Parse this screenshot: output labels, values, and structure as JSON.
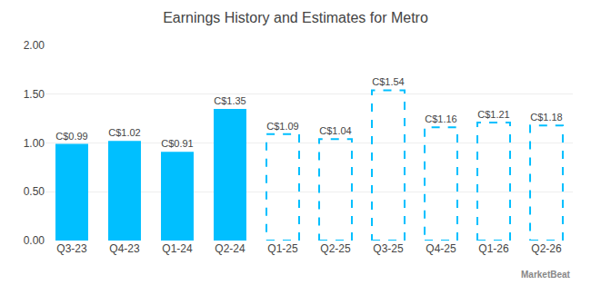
{
  "chart_data": {
    "type": "bar",
    "title": "Earnings History and Estimates for Metro",
    "categories": [
      "Q3-23",
      "Q4-23",
      "Q1-24",
      "Q2-24",
      "Q1-25",
      "Q2-25",
      "Q3-25",
      "Q4-25",
      "Q1-26",
      "Q2-26"
    ],
    "series": [
      {
        "color": "#00BFFF",
        "line_style": "solid",
        "values": [
          0.99,
          1.02,
          0.91,
          1.35,
          null,
          null,
          null,
          null,
          null,
          null
        ],
        "value_labels": [
          "C$0.99",
          "C$1.02",
          "C$0.91",
          "C$1.35",
          null,
          null,
          null,
          null,
          null,
          null
        ]
      },
      {
        "color": "#00BFFF",
        "line_style": "dashed",
        "values": [
          null,
          null,
          null,
          null,
          1.09,
          1.04,
          1.54,
          1.16,
          1.21,
          1.18
        ],
        "value_labels": [
          null,
          null,
          null,
          null,
          "C$1.09",
          "C$1.04",
          "C$1.54",
          "C$1.16",
          "C$1.21",
          "C$1.18"
        ]
      }
    ],
    "data_labels": true,
    "ylim": [
      0,
      2.0
    ],
    "yticks": [
      {
        "value": 0.0,
        "label": "0.00"
      },
      {
        "value": 0.5,
        "label": "0.50"
      },
      {
        "value": 1.0,
        "label": "1.00"
      },
      {
        "value": 1.5,
        "label": "1.50"
      },
      {
        "value": 2.0,
        "label": "2.00"
      }
    ],
    "grid": true,
    "annotations": [
      "MarketBeat"
    ]
  }
}
